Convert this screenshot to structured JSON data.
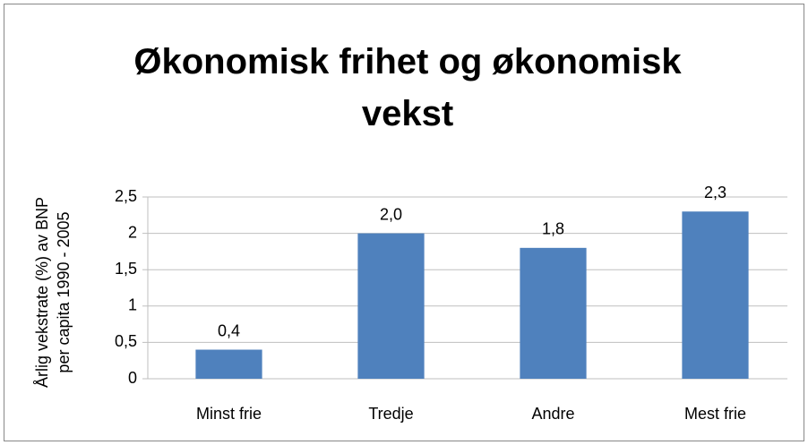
{
  "chart_data": {
    "type": "bar",
    "title": "Økonomisk frihet og økonomisk vekst",
    "ylabel": [
      "Årlig vekstrate (%) av BNP",
      "per capita 1990 - 2005"
    ],
    "categories": [
      "Minst frie",
      "Tredje",
      "Andre",
      "Mest frie"
    ],
    "values": [
      0.4,
      2.0,
      1.8,
      2.3
    ],
    "value_labels": [
      "0,4",
      "2,0",
      "1,8",
      "2,3"
    ],
    "color": "#4f81bd",
    "ylim": [
      0,
      2.5
    ],
    "yticks": [
      0,
      {
        "value": 0.5,
        "label": "0,5"
      },
      1,
      {
        "value": 1.5,
        "label": "1,5"
      },
      2,
      {
        "value": 2.5,
        "label": "2,5"
      }
    ],
    "grid": true
  }
}
